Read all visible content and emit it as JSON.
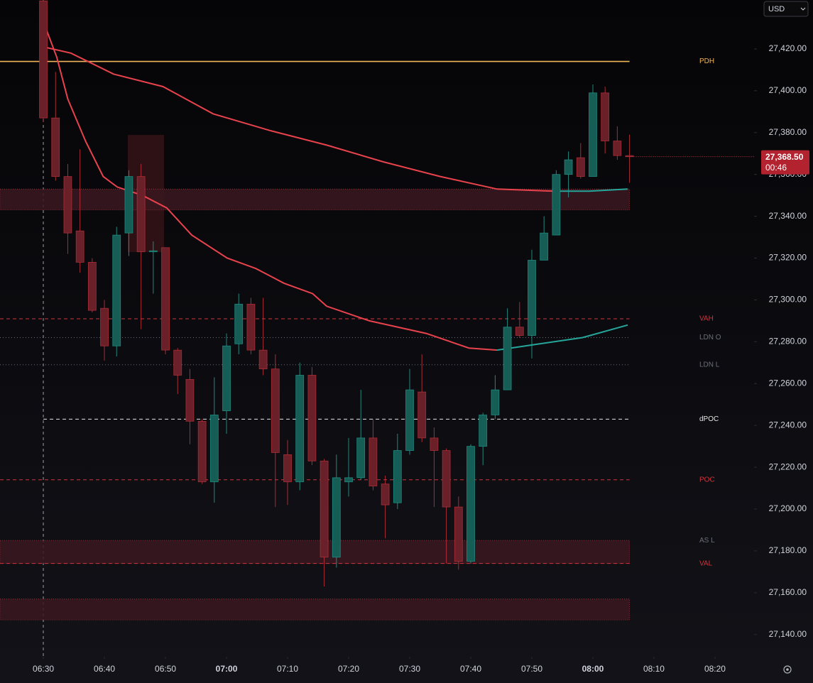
{
  "chart_data": {
    "type": "candlestick",
    "currency": "USD",
    "last_price": {
      "value": 27368.5,
      "label": "27,368.50"
    },
    "countdown": "00:46",
    "up_color": "#26a69a",
    "down_color": "#d0343f",
    "xlim": [
      382.9,
      506.4
    ],
    "ylim": [
      27129.4,
      27443.4
    ],
    "xticks": [
      {
        "value": 390,
        "label": "06:30"
      },
      {
        "value": 400,
        "label": "06:40"
      },
      {
        "value": 410,
        "label": "06:50"
      },
      {
        "value": 420,
        "label": "07:00"
      },
      {
        "value": 430,
        "label": "07:10"
      },
      {
        "value": 440,
        "label": "07:20"
      },
      {
        "value": 450,
        "label": "07:30"
      },
      {
        "value": 460,
        "label": "07:40"
      },
      {
        "value": 470,
        "label": "07:50"
      },
      {
        "value": 480,
        "label": "08:00"
      },
      {
        "value": 490,
        "label": "08:10"
      },
      {
        "value": 500,
        "label": "08:20"
      }
    ],
    "yticks": [
      {
        "value": 27140,
        "label": "27,140.00"
      },
      {
        "value": 27160,
        "label": "27,160.00"
      },
      {
        "value": 27180,
        "label": "27,180.00"
      },
      {
        "value": 27200,
        "label": "27,200.00"
      },
      {
        "value": 27220,
        "label": "27,220.00"
      },
      {
        "value": 27240,
        "label": "27,240.00"
      },
      {
        "value": 27260,
        "label": "27,260.00"
      },
      {
        "value": 27280,
        "label": "27,280.00"
      },
      {
        "value": 27300,
        "label": "27,300.00"
      },
      {
        "value": 27320,
        "label": "27,320.00"
      },
      {
        "value": 27340,
        "label": "27,340.00"
      },
      {
        "value": 27360,
        "label": "27,360.00"
      },
      {
        "value": 27380,
        "label": "27,380.00"
      },
      {
        "value": 27400,
        "label": "27,400.00"
      },
      {
        "value": 27420,
        "label": "27,420.00"
      }
    ],
    "candles": {
      "x": [
        390,
        392,
        394,
        396,
        398,
        400,
        402,
        404,
        406,
        408,
        410,
        412,
        414,
        416,
        418,
        420,
        422,
        424,
        426,
        428,
        430,
        432,
        434,
        436,
        438,
        440,
        442,
        444,
        446,
        448,
        450,
        452,
        454,
        456,
        458,
        460,
        462,
        464,
        466,
        468,
        470,
        472,
        474,
        476,
        478,
        480,
        482,
        484,
        486
      ],
      "open": [
        27443,
        27387,
        27359,
        27333,
        27318,
        27296,
        27278,
        27332,
        27359,
        27323,
        27325,
        27276,
        27262,
        27242,
        27213,
        27247,
        27279,
        27298,
        27276,
        27267,
        27226,
        27213,
        27264,
        27223,
        27177,
        27213,
        27215,
        27234,
        27212,
        27203,
        27228,
        27256,
        27234,
        27228,
        27201,
        27175,
        27230,
        27245,
        27257,
        27287,
        27283,
        27319,
        27331,
        27360,
        27368,
        27359,
        27399,
        27376,
        27369
      ],
      "high": [
        27444,
        27409,
        27365,
        27372,
        27320,
        27300,
        27335,
        27362,
        27365,
        27328,
        27325,
        27277,
        27267,
        27243,
        27263,
        27284,
        27303,
        27301,
        27301,
        27274,
        27233,
        27270,
        27268,
        27224,
        27226,
        27234,
        27257,
        27243,
        27216,
        27236,
        27267,
        27274,
        27239,
        27229,
        27206,
        27231,
        27246,
        27264,
        27296,
        27299,
        27324,
        27340,
        27362,
        27371,
        27375,
        27403,
        27402,
        27383,
        27379
      ],
      "low": [
        27385,
        27357,
        27322,
        27313,
        27294,
        27271,
        27273,
        27321,
        27286,
        27303,
        27274,
        27255,
        27231,
        27212,
        27203,
        27236,
        27274,
        27274,
        27264,
        27201,
        27202,
        27209,
        27221,
        27163,
        27172,
        27206,
        27214,
        27209,
        27186,
        27200,
        27226,
        27232,
        27201,
        27174,
        27171,
        27174,
        27221,
        27243,
        27257,
        27282,
        27272,
        27319,
        27331,
        27349,
        27358,
        27359,
        27370,
        27367,
        27356
      ],
      "close": [
        27387,
        27359,
        27332,
        27318,
        27295,
        27278,
        27331,
        27359,
        27323,
        27323.5,
        27276,
        27264,
        27242,
        27213,
        27245,
        27278,
        27298,
        27276,
        27267,
        27227,
        27213,
        27264,
        27223,
        27177,
        27215,
        27215,
        27234,
        27211,
        27202,
        27228,
        27257,
        27234,
        27228,
        27201,
        27175,
        27230,
        27245,
        27257,
        27287,
        27283,
        27319,
        27332,
        27360,
        27367,
        27359,
        27399,
        27376,
        27369,
        27368.5
      ]
    },
    "lines": [
      {
        "color": "#e8424c",
        "x": [
          390,
          394.5,
          401.5,
          409.6,
          417.8,
          427.1,
          436.4,
          445.7,
          455,
          464.3,
          473.6
        ],
        "values": [
          27421,
          27418,
          27408,
          27402,
          27389,
          27381,
          27374,
          27366,
          27359,
          27353,
          27352
        ]
      },
      {
        "color": "#26a69a",
        "x": [
          473.6,
          479.4,
          485.7
        ],
        "values": [
          27352,
          27352,
          27353
        ]
      },
      {
        "color": "#e8424c",
        "x": [
          390,
          392.2,
          394,
          396.9,
          399.8,
          402.1,
          406.2,
          410.2,
          414.3,
          420.1,
          424.8,
          429.4,
          434.1,
          436.4,
          443.4,
          452.7,
          459.7,
          464.3
        ],
        "values": [
          27433,
          27416,
          27396,
          27376,
          27359,
          27354,
          27350,
          27344,
          27331,
          27320,
          27315,
          27308,
          27303,
          27297,
          27290,
          27284,
          27277,
          27276
        ]
      },
      {
        "color": "#26a69a",
        "x": [
          464.3,
          471.3,
          478.3,
          485.7
        ],
        "values": [
          27276,
          27279,
          27282,
          27288
        ]
      }
    ],
    "zones": [
      {
        "top": 27353,
        "bottom": 27343
      },
      {
        "top": 27185,
        "bottom": 27174
      },
      {
        "top": 27157,
        "bottom": 27147
      }
    ],
    "levels": [
      {
        "label": "PDH",
        "value": 27414,
        "color": "#f0b55a",
        "style": "solid"
      },
      {
        "label": "VAH",
        "value": 27291,
        "color": "#d0343f",
        "style": "dashed"
      },
      {
        "label": "LDN O",
        "value": 27282,
        "color": "#6b6f78",
        "style": "dotted"
      },
      {
        "label": "LDN L",
        "value": 27269,
        "color": "#6b6f78",
        "style": "dotted"
      },
      {
        "label": "dPOC",
        "value": 27243,
        "color": "#e6e6e6",
        "style": "dashed",
        "from": 390
      },
      {
        "label": "POC",
        "value": 27214,
        "color": "#d0343f",
        "style": "dashed"
      },
      {
        "label": "AS L",
        "value": 27185,
        "color": "#6b6f78",
        "style": "none"
      },
      {
        "label": "VAL",
        "value": 27174,
        "color": "#d0343f",
        "style": "dashed"
      }
    ]
  }
}
